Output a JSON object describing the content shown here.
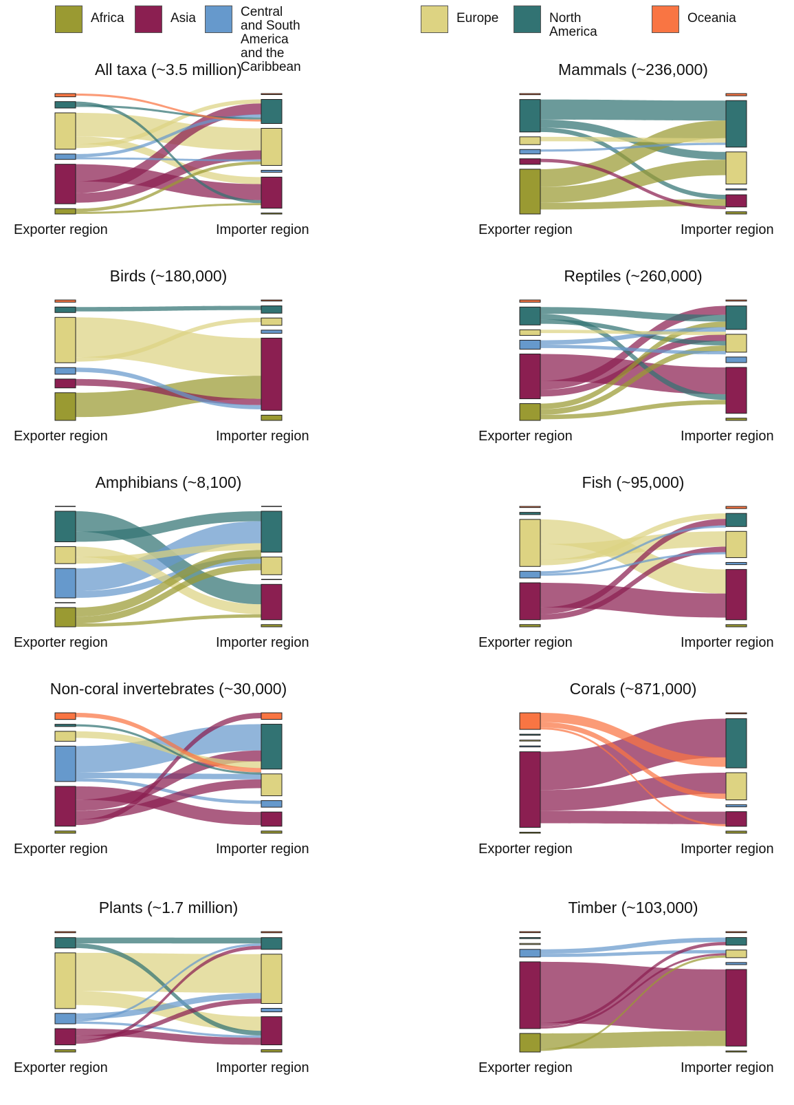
{
  "legend": {
    "items": [
      {
        "key": "africa",
        "label": "Africa",
        "color": "#9a9a32"
      },
      {
        "key": "asia",
        "label": "Asia",
        "color": "#8b1f51"
      },
      {
        "key": "csa",
        "label": "Central and South America\nand the Caribbean",
        "color": "#6699cc"
      },
      {
        "key": "europe",
        "label": "Europe",
        "color": "#ddd382"
      },
      {
        "key": "na",
        "label": "North America",
        "color": "#327373"
      },
      {
        "key": "oceania",
        "label": "Oceania",
        "color": "#f97543"
      }
    ]
  },
  "labels": {
    "exporter": "Exporter region",
    "importer": "Importer region"
  },
  "panels": [
    {
      "id": "all",
      "title": "All taxa (~3.5 million)",
      "exporters": {
        "oceania": 0.03,
        "na": 0.06,
        "europe": 0.34,
        "csa": 0.05,
        "asia": 0.37,
        "africa": 0.05
      },
      "importers": {
        "oceania": 0.01,
        "na": 0.24,
        "europe": 0.37,
        "csa": 0.02,
        "asia": 0.31,
        "africa": 0.01
      },
      "flows": [
        [
          "europe",
          "europe",
          0.22
        ],
        [
          "europe",
          "asia",
          0.07
        ],
        [
          "europe",
          "na",
          0.04
        ],
        [
          "asia",
          "asia",
          0.16
        ],
        [
          "asia",
          "na",
          0.11
        ],
        [
          "asia",
          "europe",
          0.09
        ],
        [
          "csa",
          "na",
          0.03
        ],
        [
          "csa",
          "europe",
          0.02
        ],
        [
          "na",
          "asia",
          0.03
        ],
        [
          "na",
          "na",
          0.02
        ],
        [
          "africa",
          "europe",
          0.03
        ],
        [
          "africa",
          "asia",
          0.02
        ],
        [
          "oceania",
          "na",
          0.02
        ]
      ]
    },
    {
      "id": "mammals",
      "title": "Mammals (~236,000)",
      "exporters": {
        "oceania": 0.01,
        "na": 0.29,
        "europe": 0.07,
        "csa": 0.04,
        "asia": 0.05,
        "africa": 0.4
      },
      "importers": {
        "oceania": 0.02,
        "na": 0.42,
        "europe": 0.29,
        "csa": 0.01,
        "asia": 0.11,
        "africa": 0.02
      },
      "flows": [
        [
          "na",
          "na",
          0.18
        ],
        [
          "na",
          "europe",
          0.07
        ],
        [
          "na",
          "asia",
          0.04
        ],
        [
          "africa",
          "na",
          0.16
        ],
        [
          "africa",
          "europe",
          0.14
        ],
        [
          "africa",
          "asia",
          0.06
        ],
        [
          "europe",
          "na",
          0.04
        ],
        [
          "csa",
          "na",
          0.02
        ],
        [
          "asia",
          "asia",
          0.03
        ]
      ]
    },
    {
      "id": "birds",
      "title": "Birds (~180,000)",
      "exporters": {
        "oceania": 0.02,
        "na": 0.05,
        "europe": 0.41,
        "csa": 0.06,
        "asia": 0.08,
        "africa": 0.25
      },
      "importers": {
        "oceania": 0.01,
        "na": 0.07,
        "europe": 0.07,
        "csa": 0.03,
        "asia": 0.69,
        "africa": 0.05
      },
      "flows": [
        [
          "europe",
          "asia",
          0.36
        ],
        [
          "africa",
          "asia",
          0.22
        ],
        [
          "asia",
          "asia",
          0.06
        ],
        [
          "csa",
          "asia",
          0.04
        ],
        [
          "na",
          "na",
          0.04
        ],
        [
          "europe",
          "europe",
          0.04
        ]
      ]
    },
    {
      "id": "reptiles",
      "title": "Reptiles (~260,000)",
      "exporters": {
        "oceania": 0.02,
        "na": 0.16,
        "europe": 0.05,
        "csa": 0.08,
        "asia": 0.4,
        "africa": 0.15
      },
      "importers": {
        "oceania": 0.01,
        "na": 0.21,
        "europe": 0.16,
        "csa": 0.05,
        "asia": 0.41,
        "africa": 0.02
      },
      "flows": [
        [
          "asia",
          "asia",
          0.24
        ],
        [
          "asia",
          "na",
          0.08
        ],
        [
          "asia",
          "europe",
          0.06
        ],
        [
          "na",
          "na",
          0.06
        ],
        [
          "na",
          "asia",
          0.05
        ],
        [
          "na",
          "europe",
          0.04
        ],
        [
          "africa",
          "na",
          0.05
        ],
        [
          "africa",
          "europe",
          0.05
        ],
        [
          "africa",
          "asia",
          0.04
        ],
        [
          "csa",
          "na",
          0.04
        ],
        [
          "csa",
          "europe",
          0.03
        ],
        [
          "europe",
          "na",
          0.03
        ]
      ]
    },
    {
      "id": "amphibians",
      "title": "Amphibians (~8,100)",
      "exporters": {
        "na": 0.27,
        "europe": 0.15,
        "csa": 0.26,
        "africa": 0.17
      },
      "importers": {
        "na": 0.37,
        "europe": 0.16,
        "asia": 0.32,
        "africa": 0.02
      },
      "flows": [
        [
          "na",
          "asia",
          0.18
        ],
        [
          "na",
          "na",
          0.09
        ],
        [
          "csa",
          "na",
          0.2
        ],
        [
          "csa",
          "europe",
          0.06
        ],
        [
          "europe",
          "asia",
          0.09
        ],
        [
          "europe",
          "na",
          0.06
        ],
        [
          "africa",
          "na",
          0.08
        ],
        [
          "africa",
          "europe",
          0.06
        ],
        [
          "africa",
          "asia",
          0.03
        ]
      ]
    },
    {
      "id": "fish",
      "title": "Fish (~95,000)",
      "exporters": {
        "oceania": 0.01,
        "na": 0.02,
        "europe": 0.42,
        "csa": 0.06,
        "asia": 0.33,
        "africa": 0.02
      },
      "importers": {
        "oceania": 0.02,
        "na": 0.12,
        "europe": 0.24,
        "csa": 0.02,
        "asia": 0.46,
        "africa": 0.02
      },
      "flows": [
        [
          "europe",
          "asia",
          0.22
        ],
        [
          "europe",
          "europe",
          0.14
        ],
        [
          "europe",
          "na",
          0.05
        ],
        [
          "asia",
          "asia",
          0.22
        ],
        [
          "asia",
          "na",
          0.06
        ],
        [
          "asia",
          "europe",
          0.05
        ],
        [
          "csa",
          "na",
          0.02
        ],
        [
          "csa",
          "europe",
          0.02
        ]
      ]
    },
    {
      "id": "invertebrates",
      "title": "Non-coral invertebrates (~30,000)",
      "exporters": {
        "oceania": 0.06,
        "na": 0.02,
        "europe": 0.09,
        "csa": 0.32,
        "asia": 0.36,
        "africa": 0.02
      },
      "importers": {
        "oceania": 0.06,
        "na": 0.41,
        "europe": 0.2,
        "csa": 0.06,
        "asia": 0.13,
        "africa": 0.02
      },
      "flows": [
        [
          "csa",
          "na",
          0.24
        ],
        [
          "csa",
          "europe",
          0.05
        ],
        [
          "csa",
          "csa",
          0.03
        ],
        [
          "asia",
          "asia",
          0.12
        ],
        [
          "asia",
          "na",
          0.1
        ],
        [
          "asia",
          "europe",
          0.08
        ],
        [
          "asia",
          "oceania",
          0.05
        ],
        [
          "europe",
          "na",
          0.06
        ],
        [
          "oceania",
          "na",
          0.04
        ],
        [
          "na",
          "na",
          0.02
        ]
      ]
    },
    {
      "id": "corals",
      "title": "Corals (~871,000)",
      "exporters": {
        "oceania": 0.16,
        "na": 0.01,
        "europe": 0.01,
        "csa": 0.01,
        "asia": 0.73,
        "africa": 0.01
      },
      "importers": {
        "oceania": 0.01,
        "na": 0.47,
        "europe": 0.26,
        "csa": 0.02,
        "asia": 0.14,
        "africa": 0.02
      },
      "flows": [
        [
          "asia",
          "na",
          0.37
        ],
        [
          "asia",
          "europe",
          0.2
        ],
        [
          "asia",
          "asia",
          0.12
        ],
        [
          "oceania",
          "na",
          0.09
        ],
        [
          "oceania",
          "europe",
          0.05
        ],
        [
          "oceania",
          "asia",
          0.02
        ]
      ]
    },
    {
      "id": "plants",
      "title": "Plants (~1.7 million)",
      "exporters": {
        "oceania": 0.01,
        "na": 0.09,
        "europe": 0.48,
        "csa": 0.09,
        "asia": 0.14,
        "africa": 0.02
      },
      "importers": {
        "oceania": 0.01,
        "na": 0.1,
        "europe": 0.42,
        "csa": 0.03,
        "asia": 0.24,
        "africa": 0.02
      },
      "flows": [
        [
          "europe",
          "europe",
          0.33
        ],
        [
          "europe",
          "asia",
          0.12
        ],
        [
          "na",
          "na",
          0.05
        ],
        [
          "na",
          "asia",
          0.04
        ],
        [
          "csa",
          "europe",
          0.05
        ],
        [
          "csa",
          "na",
          0.02
        ],
        [
          "csa",
          "asia",
          0.02
        ],
        [
          "asia",
          "asia",
          0.06
        ],
        [
          "asia",
          "europe",
          0.04
        ],
        [
          "asia",
          "na",
          0.03
        ]
      ]
    },
    {
      "id": "timber",
      "title": "Timber (~103,000)",
      "exporters": {
        "oceania": 0.01,
        "na": 0.01,
        "europe": 0.01,
        "csa": 0.07,
        "asia": 0.61,
        "africa": 0.17
      },
      "importers": {
        "oceania": 0.01,
        "na": 0.07,
        "europe": 0.07,
        "csa": 0.02,
        "asia": 0.7,
        "africa": 0.01
      },
      "flows": [
        [
          "asia",
          "asia",
          0.56
        ],
        [
          "africa",
          "asia",
          0.14
        ],
        [
          "csa",
          "na",
          0.04
        ],
        [
          "csa",
          "europe",
          0.03
        ],
        [
          "asia",
          "na",
          0.03
        ],
        [
          "asia",
          "europe",
          0.02
        ],
        [
          "africa",
          "europe",
          0.02
        ]
      ]
    }
  ]
}
